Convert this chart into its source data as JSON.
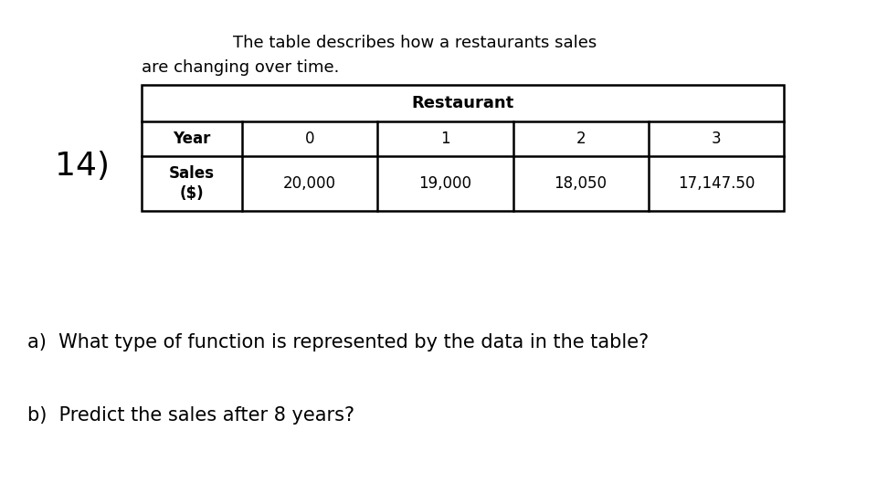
{
  "title_line1": "The table describes how a restaurants sales",
  "title_line2": "are changing over time.",
  "question_number": "14)",
  "table_header": "Restaurant",
  "row1_label": "Year",
  "row1_values": [
    "0",
    "1",
    "2",
    "3"
  ],
  "row2_label": "Sales\n($)",
  "row2_values": [
    "20,000",
    "19,000",
    "18,050",
    "17,147.50"
  ],
  "question_a": "a)  What type of function is represented by the data in the table?",
  "question_b": "b)  Predict the sales after 8 years?",
  "bg_color": "#ffffff",
  "text_color": "#000000",
  "font_size_title": 13,
  "font_size_table": 12,
  "font_size_question_num": 26,
  "font_size_questions": 15
}
